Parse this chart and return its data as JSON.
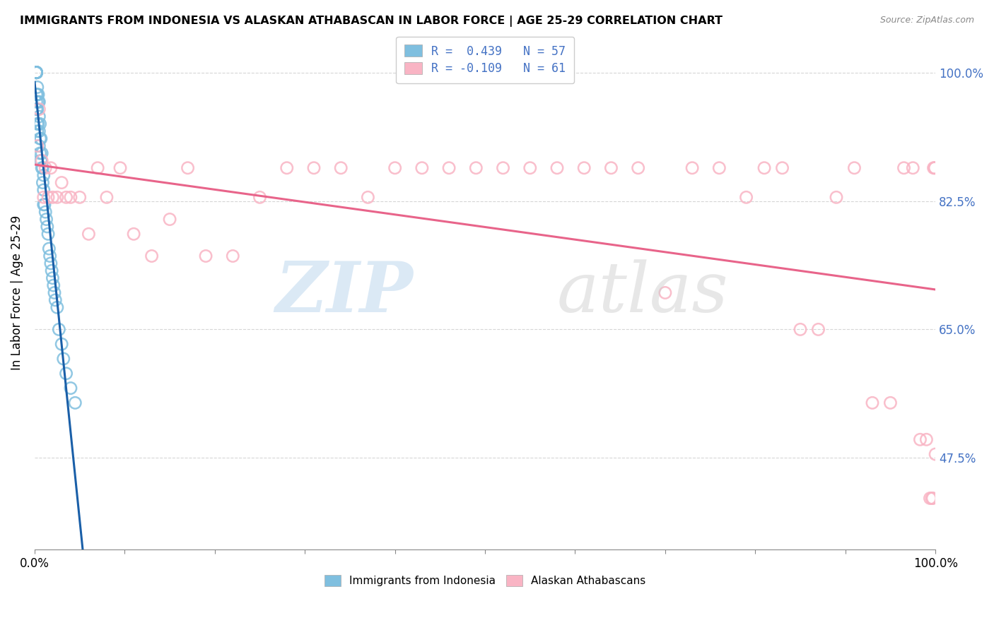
{
  "title": "IMMIGRANTS FROM INDONESIA VS ALASKAN ATHABASCAN IN LABOR FORCE | AGE 25-29 CORRELATION CHART",
  "source": "Source: ZipAtlas.com",
  "ylabel": "In Labor Force | Age 25-29",
  "xlim": [
    0.0,
    1.0
  ],
  "ylim": [
    0.35,
    1.05
  ],
  "yticks": [
    0.475,
    0.65,
    0.825,
    1.0
  ],
  "ytick_labels": [
    "47.5%",
    "65.0%",
    "82.5%",
    "100.0%"
  ],
  "blue_R": 0.439,
  "blue_N": 57,
  "pink_R": -0.109,
  "pink_N": 61,
  "blue_color": "#7fbfdf",
  "pink_color": "#f9b4c4",
  "blue_line_color": "#1a5fa8",
  "pink_line_color": "#e8648a",
  "legend_label_blue": "Immigrants from Indonesia",
  "legend_label_pink": "Alaskan Athabascans",
  "blue_x": [
    0.002,
    0.002,
    0.002,
    0.002,
    0.002,
    0.002,
    0.002,
    0.002,
    0.002,
    0.002,
    0.002,
    0.002,
    0.002,
    0.003,
    0.003,
    0.003,
    0.003,
    0.003,
    0.004,
    0.004,
    0.004,
    0.005,
    0.005,
    0.005,
    0.005,
    0.006,
    0.006,
    0.006,
    0.007,
    0.007,
    0.008,
    0.008,
    0.009,
    0.009,
    0.01,
    0.01,
    0.01,
    0.011,
    0.012,
    0.013,
    0.014,
    0.015,
    0.016,
    0.017,
    0.018,
    0.019,
    0.02,
    0.021,
    0.022,
    0.023,
    0.025,
    0.027,
    0.03,
    0.032,
    0.035,
    0.04,
    0.045
  ],
  "blue_y": [
    1.0,
    1.0,
    1.0,
    1.0,
    1.0,
    1.0,
    1.0,
    1.0,
    1.0,
    1.0,
    0.97,
    0.96,
    0.95,
    0.98,
    0.97,
    0.95,
    0.93,
    0.92,
    0.97,
    0.96,
    0.93,
    0.96,
    0.94,
    0.92,
    0.9,
    0.93,
    0.91,
    0.89,
    0.91,
    0.88,
    0.89,
    0.87,
    0.87,
    0.85,
    0.86,
    0.84,
    0.82,
    0.82,
    0.81,
    0.8,
    0.79,
    0.78,
    0.76,
    0.75,
    0.74,
    0.73,
    0.72,
    0.71,
    0.7,
    0.69,
    0.68,
    0.65,
    0.63,
    0.61,
    0.59,
    0.57,
    0.55
  ],
  "pink_x": [
    0.003,
    0.005,
    0.008,
    0.01,
    0.012,
    0.015,
    0.018,
    0.02,
    0.025,
    0.03,
    0.035,
    0.04,
    0.05,
    0.06,
    0.07,
    0.08,
    0.095,
    0.11,
    0.13,
    0.15,
    0.17,
    0.19,
    0.22,
    0.25,
    0.28,
    0.31,
    0.34,
    0.37,
    0.4,
    0.43,
    0.46,
    0.49,
    0.52,
    0.55,
    0.58,
    0.61,
    0.64,
    0.67,
    0.7,
    0.73,
    0.76,
    0.79,
    0.81,
    0.83,
    0.85,
    0.87,
    0.89,
    0.91,
    0.93,
    0.95,
    0.965,
    0.975,
    0.983,
    0.99,
    0.994,
    0.996,
    0.997,
    0.998,
    0.999,
    0.9995,
    1.0
  ],
  "pink_y": [
    0.9,
    0.95,
    0.88,
    0.83,
    0.87,
    0.83,
    0.87,
    0.83,
    0.83,
    0.85,
    0.83,
    0.83,
    0.83,
    0.78,
    0.87,
    0.83,
    0.87,
    0.78,
    0.75,
    0.8,
    0.87,
    0.75,
    0.75,
    0.83,
    0.87,
    0.87,
    0.87,
    0.83,
    0.87,
    0.87,
    0.87,
    0.87,
    0.87,
    0.87,
    0.87,
    0.87,
    0.87,
    0.87,
    0.7,
    0.87,
    0.87,
    0.83,
    0.87,
    0.87,
    0.65,
    0.65,
    0.83,
    0.87,
    0.55,
    0.55,
    0.87,
    0.87,
    0.5,
    0.5,
    0.42,
    0.42,
    0.42,
    0.87,
    0.87,
    0.87,
    0.48
  ]
}
